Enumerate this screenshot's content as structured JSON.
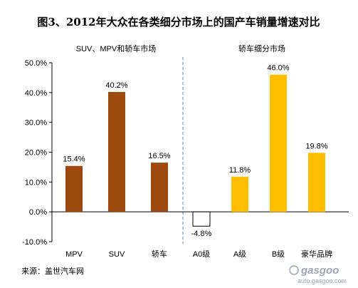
{
  "title": "图3、2012年大众在各类细分市场上的国产车销量增速对比",
  "source": "来源：盖世汽车网",
  "watermark": {
    "logo": "gasgoo",
    "url": "auto.gasgoo.com"
  },
  "chart_data": {
    "type": "bar",
    "sections": [
      {
        "label": "SUV、MPV和轿车市场",
        "color": "#9c4a10",
        "categories": [
          "MPV",
          "SUV",
          "轿车"
        ]
      },
      {
        "label": "轿车细分市场",
        "color": "#ffbf00",
        "categories": [
          "A0级",
          "A级",
          "B级",
          "豪华品牌"
        ]
      }
    ],
    "categories": [
      "MPV",
      "SUV",
      "轿车",
      "A0级",
      "A级",
      "B级",
      "豪华品牌"
    ],
    "values": [
      15.4,
      40.2,
      16.5,
      -4.8,
      11.8,
      46.0,
      19.8
    ],
    "data_labels": [
      "15.4%",
      "40.2%",
      "16.5%",
      "-4.8%",
      "11.8%",
      "46.0%",
      "19.8%"
    ],
    "negative_fill": "#ffffff",
    "ylim": [
      -10,
      50
    ],
    "yticks": [
      "-10.0%",
      "0.0%",
      "10.0%",
      "20.0%",
      "30.0%",
      "40.0%",
      "50.0%"
    ],
    "ytick_values": [
      -10,
      0,
      10,
      20,
      30,
      40,
      50
    ],
    "grid": false,
    "legend": "none",
    "xlabel": "",
    "ylabel": ""
  }
}
